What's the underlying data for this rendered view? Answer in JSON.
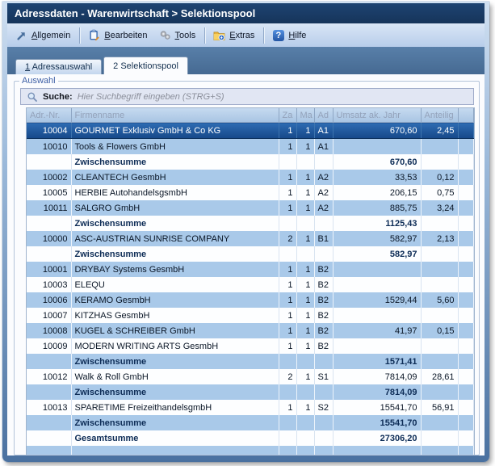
{
  "window": {
    "title": "Adressdaten - Warenwirtschaft > Selektionspool"
  },
  "toolbar": {
    "items": [
      {
        "label": "Allgemein",
        "icon": "arrow-up-right-icon",
        "sep_after": true
      },
      {
        "label": "Bearbeiten",
        "icon": "notepad-icon",
        "sep_after": false
      },
      {
        "label": "Tools",
        "icon": "gears-icon",
        "sep_after": true
      },
      {
        "label": "Extras",
        "icon": "folder-icon",
        "sep_after": true
      },
      {
        "label": "Hilfe",
        "icon": "help-icon",
        "sep_after": false
      }
    ]
  },
  "tabs": [
    {
      "label": "1 Adressauswahl",
      "active": false,
      "underline_first": true
    },
    {
      "label": "2 Selektionspool",
      "active": true,
      "underline_first": false
    }
  ],
  "auswahl": {
    "legend": "Auswahl"
  },
  "search": {
    "label": "Suche:",
    "placeholder": "Hier Suchbegriff eingeben (STRG+S)"
  },
  "table": {
    "columns": [
      "Adr.-Nr.",
      "Firmenname",
      "Za",
      "Ma",
      "Ad",
      "Umsatz ak. Jahr",
      "Anteilig",
      ""
    ],
    "rows": [
      {
        "type": "data",
        "selected": true,
        "nr": "10004",
        "name": "GOURMET Exklusiv GmbH & Co KG",
        "za": "1",
        "ma": "1",
        "ad": "A1",
        "umsatz": "670,60",
        "anteilig": "2,45"
      },
      {
        "type": "data",
        "nr": "10010",
        "name": "Tools & Flowers GmbH",
        "za": "1",
        "ma": "1",
        "ad": "A1",
        "umsatz": "",
        "anteilig": ""
      },
      {
        "type": "subtotal",
        "label": "Zwischensumme",
        "umsatz": "670,60"
      },
      {
        "type": "data",
        "nr": "10002",
        "name": "CLEANTECH GesmbH",
        "za": "1",
        "ma": "1",
        "ad": "A2",
        "umsatz": "33,53",
        "anteilig": "0,12"
      },
      {
        "type": "data",
        "nr": "10005",
        "name": "HERBIE AutohandelsgsmbH",
        "za": "1",
        "ma": "1",
        "ad": "A2",
        "umsatz": "206,15",
        "anteilig": "0,75"
      },
      {
        "type": "data",
        "nr": "10011",
        "name": "SALGRO GmbH",
        "za": "1",
        "ma": "1",
        "ad": "A2",
        "umsatz": "885,75",
        "anteilig": "3,24"
      },
      {
        "type": "subtotal",
        "label": "Zwischensumme",
        "umsatz": "1125,43"
      },
      {
        "type": "data",
        "nr": "10000",
        "name": "ASC-AUSTRIAN  SUNRISE COMPANY",
        "za": "2",
        "ma": "1",
        "ad": "B1",
        "umsatz": "582,97",
        "anteilig": "2,13"
      },
      {
        "type": "subtotal",
        "label": "Zwischensumme",
        "umsatz": "582,97"
      },
      {
        "type": "data",
        "nr": "10001",
        "name": "DRYBAY Systems GesmbH",
        "za": "1",
        "ma": "1",
        "ad": "B2",
        "umsatz": "",
        "anteilig": ""
      },
      {
        "type": "data",
        "nr": "10003",
        "name": "ELEQU",
        "za": "1",
        "ma": "1",
        "ad": "B2",
        "umsatz": "",
        "anteilig": ""
      },
      {
        "type": "data",
        "nr": "10006",
        "name": "KERAMO GesmbH",
        "za": "1",
        "ma": "1",
        "ad": "B2",
        "umsatz": "1529,44",
        "anteilig": "5,60"
      },
      {
        "type": "data",
        "nr": "10007",
        "name": "KITZHAS GesmbH",
        "za": "1",
        "ma": "1",
        "ad": "B2",
        "umsatz": "",
        "anteilig": ""
      },
      {
        "type": "data",
        "nr": "10008",
        "name": "KUGEL & SCHREIBER GmbH",
        "za": "1",
        "ma": "1",
        "ad": "B2",
        "umsatz": "41,97",
        "anteilig": "0,15"
      },
      {
        "type": "data",
        "nr": "10009",
        "name": "MODERN WRITING ARTS GesmbH",
        "za": "1",
        "ma": "1",
        "ad": "B2",
        "umsatz": "",
        "anteilig": ""
      },
      {
        "type": "subtotal",
        "label": "Zwischensumme",
        "umsatz": "1571,41"
      },
      {
        "type": "data",
        "nr": "10012",
        "name": "Walk & Roll GmbH",
        "za": "2",
        "ma": "1",
        "ad": "S1",
        "umsatz": "7814,09",
        "anteilig": "28,61"
      },
      {
        "type": "subtotal",
        "label": "Zwischensumme",
        "umsatz": "7814,09"
      },
      {
        "type": "data",
        "nr": "10013",
        "name": "SPARETIME FreizeithandelsgmbH",
        "za": "1",
        "ma": "1",
        "ad": "S2",
        "umsatz": "15541,70",
        "anteilig": "56,91"
      },
      {
        "type": "subtotal",
        "label": "Zwischensumme",
        "umsatz": "15541,70"
      },
      {
        "type": "total",
        "label": "Gesamtsumme",
        "umsatz": "27306,20"
      }
    ]
  },
  "colors": {
    "titlebar": "#17375e",
    "row_blue": "#a9c9e9",
    "row_selected": "#1c5796",
    "band_blue": "#4a7099"
  }
}
